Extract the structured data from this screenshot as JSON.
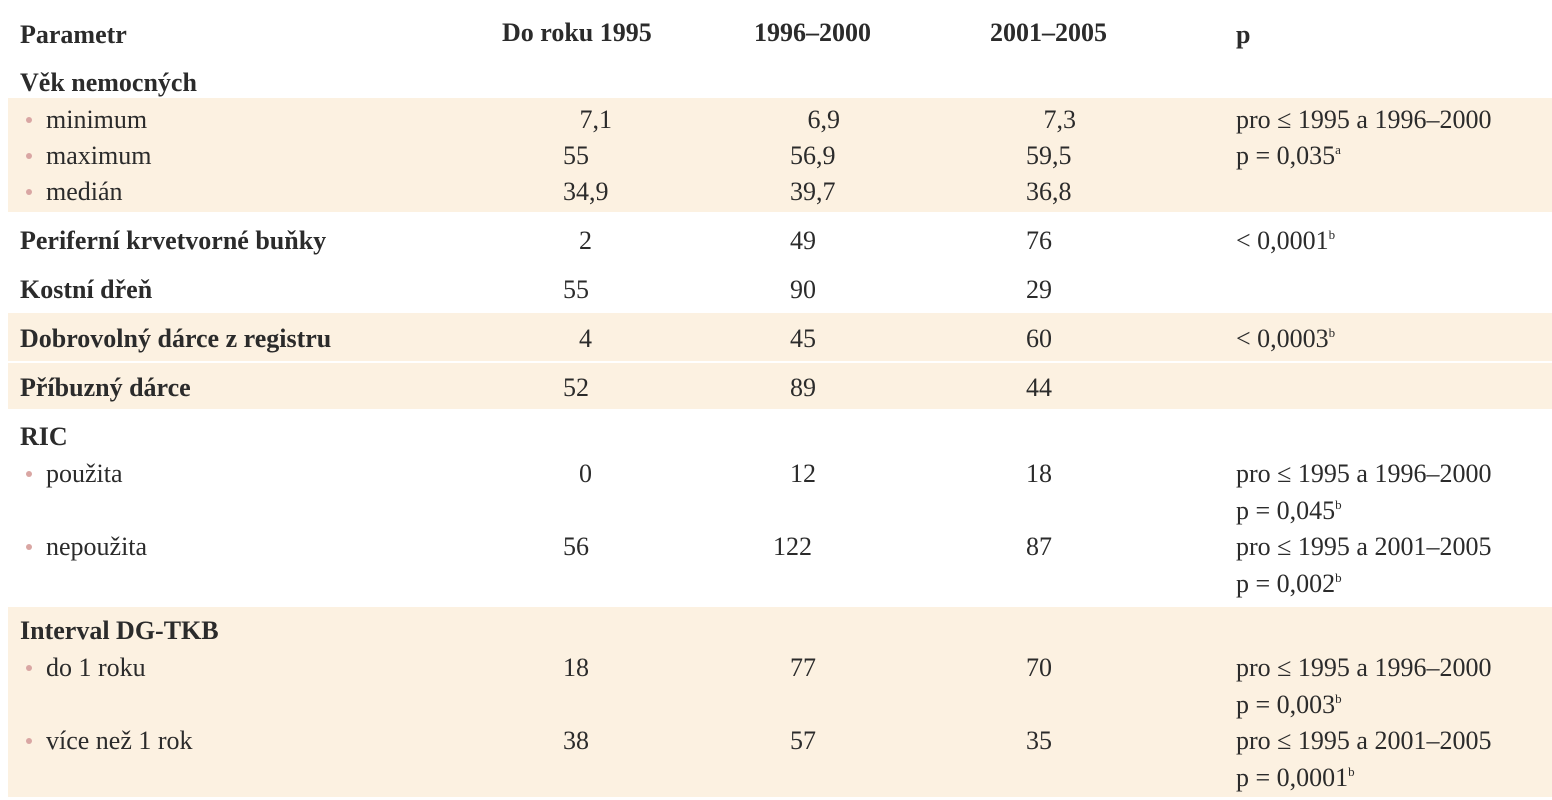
{
  "header": {
    "param": "Parametr",
    "col1": "Do roku 1995",
    "col2": "1996–2000",
    "col3": "2001–2005",
    "p": "p"
  },
  "sections": {
    "vek": {
      "title": "Věk nemocných",
      "rows": [
        {
          "label": "minimum",
          "v1": "7,1",
          "v2": "6,9",
          "v3": "7,3"
        },
        {
          "label": "maximum",
          "v1": "55",
          "v2": "56,9",
          "v3": "59,5"
        },
        {
          "label": "medián",
          "v1": "34,9",
          "v2": "39,7",
          "v3": "36,8"
        }
      ],
      "p_line1": "pro ≤ 1995 a 1996–2000",
      "p_line2": "p = 0,035",
      "p_line2_sup": "a"
    },
    "periferni": {
      "label": "Periferní krvetvorné buňky",
      "v1": "2",
      "v2": "49",
      "v3": "76",
      "p": "< 0,0001",
      "p_sup": "b"
    },
    "kostni": {
      "label": "Kostní dřeň",
      "v1": "55",
      "v2": "90",
      "v3": "29"
    },
    "dobrovolny": {
      "label": "Dobrovolný dárce z registru",
      "v1": "4",
      "v2": "45",
      "v3": "60",
      "p": "< 0,0003",
      "p_sup": "b"
    },
    "pribuzny": {
      "label": "Příbuzný dárce",
      "v1": "52",
      "v2": "89",
      "v3": "44"
    },
    "ric": {
      "title": "RIC",
      "rows": [
        {
          "label": "použita",
          "v1": "0",
          "v2": "12",
          "v3": "18",
          "p_line1": "pro ≤ 1995 a 1996–2000",
          "p_line2": "p = 0,045",
          "p_sup": "b"
        },
        {
          "label": "nepoužita",
          "v1": "56",
          "v2": "122",
          "v3": "87",
          "p_line1": "pro ≤ 1995 a 2001–2005",
          "p_line2": "p = 0,002",
          "p_sup": "b"
        }
      ]
    },
    "interval": {
      "title": "Interval DG-TKB",
      "rows": [
        {
          "label": "do 1 roku",
          "v1": "18",
          "v2": "77",
          "v3": "70",
          "p_line1": "pro ≤ 1995 a 1996–2000",
          "p_line2": "p = 0,003",
          "p_sup": "b"
        },
        {
          "label": "více než 1 rok",
          "v1": "38",
          "v2": "57",
          "v3": "35",
          "p_line1": "pro ≤ 1995 a 2001–2005",
          "p_line2": "p = 0,0001",
          "p_sup": "b"
        }
      ]
    }
  },
  "colors": {
    "band": "#fcf1e1",
    "bullet": "#d9a6a3",
    "text": "#2b2b2b"
  }
}
